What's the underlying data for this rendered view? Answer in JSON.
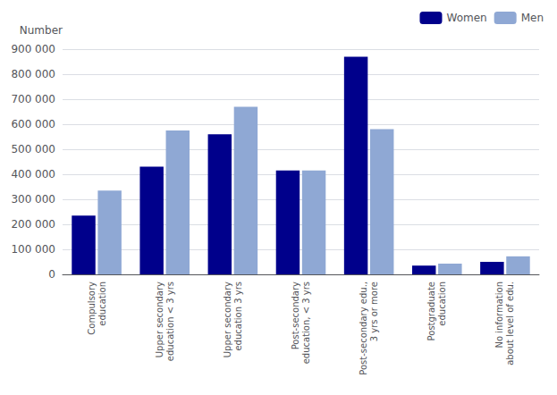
{
  "chart_data": {
    "type": "bar",
    "ylabel": "Number",
    "categories": [
      "Compulsory\neducation",
      "Upper secondary\neducation < 3 yrs",
      "Upper secondary\neducation 3 yrs",
      "Post-secondary\neducation, < 3 yrs",
      "Post-secondary edu.,\n3 yrs or more",
      "Postgraduate\neducation",
      "No information\nabout level of edu."
    ],
    "series": [
      {
        "name": "Women",
        "color": "#00008B",
        "values": [
          235000,
          430000,
          560000,
          415000,
          870000,
          35000,
          50000
        ]
      },
      {
        "name": "Men",
        "color": "#8FA8D4",
        "values": [
          335000,
          575000,
          670000,
          415000,
          580000,
          43000,
          72000
        ]
      }
    ],
    "ylim": [
      0,
      900000
    ],
    "yticks": [
      0,
      {
        "value": 100000,
        "label": "100 000"
      },
      {
        "value": 200000,
        "label": "200 000"
      },
      {
        "value": 300000,
        "label": "300 000"
      },
      {
        "value": 400000,
        "label": "400 000"
      },
      {
        "value": 500000,
        "label": "500 000"
      },
      {
        "value": 600000,
        "label": "600 000"
      },
      {
        "value": 700000,
        "label": "700 000"
      },
      {
        "value": 800000,
        "label": "800 000"
      },
      {
        "value": 900000,
        "label": "900 000"
      }
    ],
    "grid": true,
    "legend": "upper right"
  }
}
